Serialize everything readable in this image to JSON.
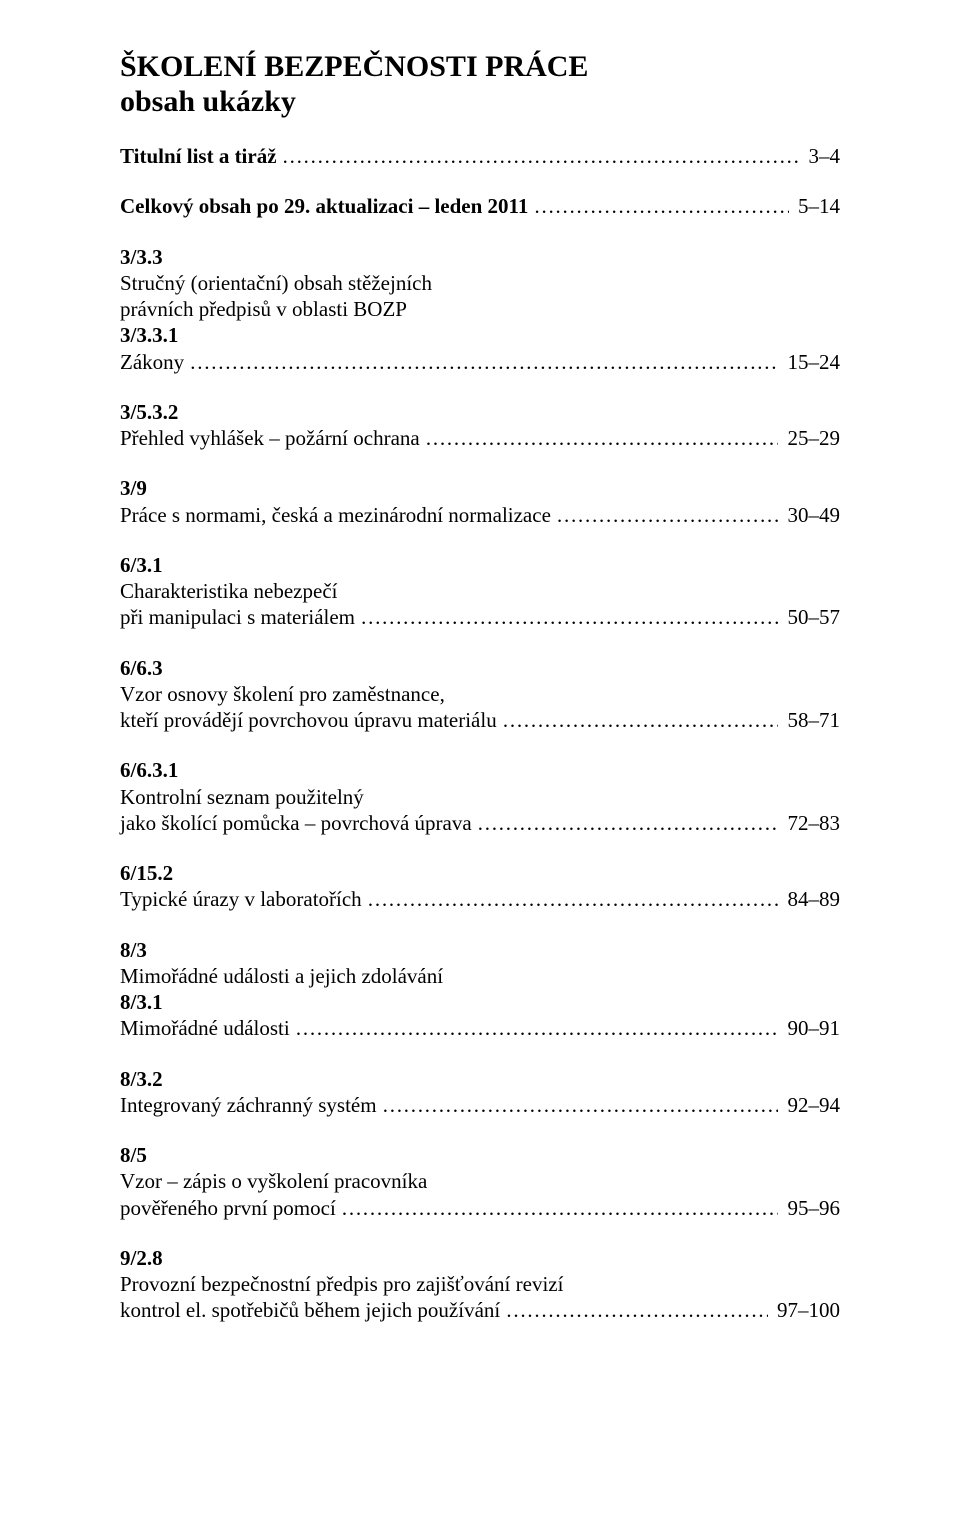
{
  "title": {
    "line1": "ŠKOLENÍ BEZPEČNOSTI PRÁCE",
    "line2": "obsah ukázky"
  },
  "entries": [
    {
      "lines": [],
      "lead": "Titulní list a tiráž",
      "lead_bold": true,
      "pages": "3–4",
      "gap_before": true
    },
    {
      "lines": [],
      "lead": "Celkový obsah po 29. aktualizaci – leden 2011",
      "lead_bold": true,
      "pages": "5–14",
      "gap_before": true
    },
    {
      "lines": [
        {
          "text": "3/3.3",
          "bold": true
        },
        {
          "text": "Stručný (orientační) obsah stěžejních",
          "bold": false
        },
        {
          "text": "právních předpisů v oblasti BOZP",
          "bold": false
        },
        {
          "text": "3/3.3.1",
          "bold": true
        }
      ],
      "lead": "Zákony",
      "lead_bold": false,
      "pages": "15–24",
      "gap_before": true
    },
    {
      "lines": [
        {
          "text": "3/5.3.2",
          "bold": true
        }
      ],
      "lead": "Přehled vyhlášek – požární ochrana",
      "lead_bold": false,
      "pages": "25–29",
      "gap_before": true
    },
    {
      "lines": [
        {
          "text": "3/9",
          "bold": true
        }
      ],
      "lead": "Práce s normami, česká a mezinárodní normalizace",
      "lead_bold": false,
      "pages": "30–49",
      "gap_before": true
    },
    {
      "lines": [
        {
          "text": "6/3.1",
          "bold": true
        },
        {
          "text": "Charakteristika nebezpečí",
          "bold": false
        }
      ],
      "lead": "při manipulaci s materiálem",
      "lead_bold": false,
      "pages": "50–57",
      "gap_before": true
    },
    {
      "lines": [
        {
          "text": "6/6.3",
          "bold": true
        },
        {
          "text": "Vzor osnovy školení pro zaměstnance,",
          "bold": false
        }
      ],
      "lead": "kteří provádějí povrchovou úpravu materiálu",
      "lead_bold": false,
      "pages": "58–71",
      "gap_before": true
    },
    {
      "lines": [
        {
          "text": "6/6.3.1",
          "bold": true
        },
        {
          "text": "Kontrolní seznam použitelný",
          "bold": false
        }
      ],
      "lead": "jako školící pomůcka – povrchová úprava",
      "lead_bold": false,
      "pages": "72–83",
      "gap_before": true
    },
    {
      "lines": [
        {
          "text": "6/15.2",
          "bold": true
        }
      ],
      "lead": "Typické úrazy v laboratořích",
      "lead_bold": false,
      "pages": "84–89",
      "gap_before": true
    },
    {
      "lines": [
        {
          "text": "8/3",
          "bold": true
        },
        {
          "text": "Mimořádné události a jejich zdolávání",
          "bold": false
        },
        {
          "text": "8/3.1",
          "bold": true
        }
      ],
      "lead": "Mimořádné události",
      "lead_bold": false,
      "pages": "90–91",
      "gap_before": true
    },
    {
      "lines": [
        {
          "text": "8/3.2",
          "bold": true
        }
      ],
      "lead": "Integrovaný záchranný systém",
      "lead_bold": false,
      "pages": "92–94",
      "gap_before": true
    },
    {
      "lines": [
        {
          "text": "8/5",
          "bold": true
        },
        {
          "text": "Vzor – zápis o vyškolení pracovníka",
          "bold": false
        }
      ],
      "lead": "pověřeného první pomocí",
      "lead_bold": false,
      "pages": "95–96",
      "gap_before": true
    },
    {
      "lines": [
        {
          "text": "9/2.8",
          "bold": true
        },
        {
          "text": "Provozní bezpečnostní předpis pro zajišťování revizí",
          "bold": false
        }
      ],
      "lead": "kontrol el. spotřebičů během jejich používání",
      "lead_bold": false,
      "pages": "97–100",
      "gap_before": true
    }
  ]
}
